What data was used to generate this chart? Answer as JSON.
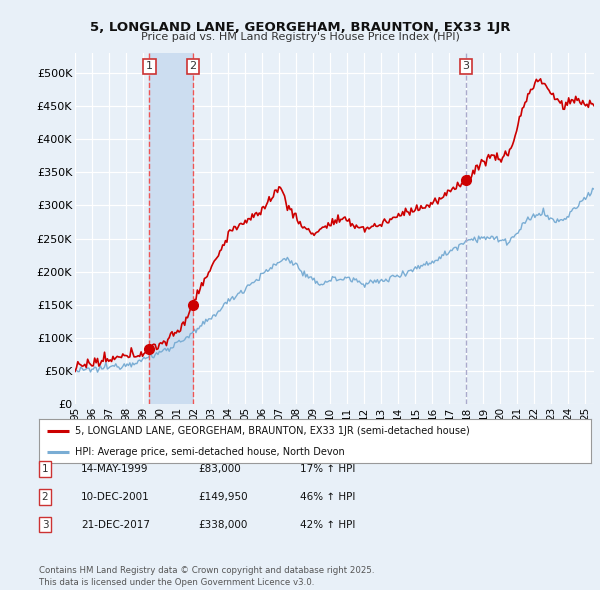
{
  "title1": "5, LONGLAND LANE, GEORGEHAM, BRAUNTON, EX33 1JR",
  "title2": "Price paid vs. HM Land Registry's House Price Index (HPI)",
  "ylabel_ticks": [
    "£0",
    "£50K",
    "£100K",
    "£150K",
    "£200K",
    "£250K",
    "£300K",
    "£350K",
    "£400K",
    "£450K",
    "£500K"
  ],
  "ytick_values": [
    0,
    50000,
    100000,
    150000,
    200000,
    250000,
    300000,
    350000,
    400000,
    450000,
    500000
  ],
  "ylim": [
    0,
    530000
  ],
  "xlim_start": 1995.0,
  "xlim_end": 2025.5,
  "background_color": "#e8f0f8",
  "plot_bg_color": "#e8f0f8",
  "grid_color": "#ffffff",
  "sale_dates": [
    1999.37,
    2001.94,
    2017.97
  ],
  "sale_prices": [
    83000,
    149950,
    338000
  ],
  "sale_labels": [
    "1",
    "2",
    "3"
  ],
  "vline_styles": [
    "dashed_red",
    "dashed_red",
    "dashed_grey"
  ],
  "legend_line1": "5, LONGLAND LANE, GEORGEHAM, BRAUNTON, EX33 1JR (semi-detached house)",
  "legend_line2": "HPI: Average price, semi-detached house, North Devon",
  "transaction_rows": [
    [
      "1",
      "14-MAY-1999",
      "£83,000",
      "17% ↑ HPI"
    ],
    [
      "2",
      "10-DEC-2001",
      "£149,950",
      "46% ↑ HPI"
    ],
    [
      "3",
      "21-DEC-2017",
      "£338,000",
      "42% ↑ HPI"
    ]
  ],
  "footer": "Contains HM Land Registry data © Crown copyright and database right 2025.\nThis data is licensed under the Open Government Licence v3.0.",
  "price_line_color": "#cc0000",
  "hpi_line_color": "#7aadd4",
  "vline_color_red": "#ee5555",
  "vline_color_grey": "#aaaacc",
  "label_box_edge": "#cc3333",
  "span_color": "#ccddf0"
}
